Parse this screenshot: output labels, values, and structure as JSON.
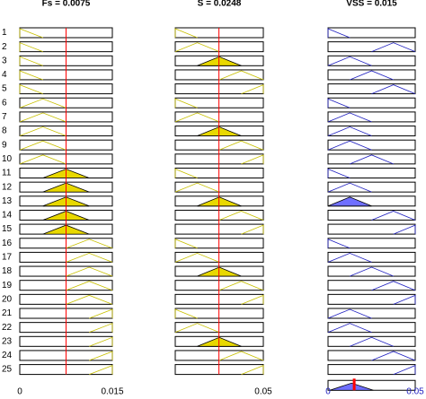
{
  "rule_labels": [
    "1",
    "2",
    "3",
    "4",
    "5",
    "6",
    "7",
    "8",
    "9",
    "10",
    "11",
    "12",
    "13",
    "14",
    "15",
    "16",
    "17",
    "18",
    "19",
    "20",
    "21",
    "22",
    "23",
    "24",
    "25"
  ],
  "columns": [
    {
      "title": "Fs = 0.0075",
      "value": 0.0075,
      "range": [
        0,
        0.015
      ],
      "axis_labels": [
        "0",
        "0.015"
      ],
      "color": "#e8d800",
      "edge": "#c8c000",
      "mf": [
        0,
        0,
        0,
        0,
        0,
        1,
        1,
        1,
        1,
        1,
        2,
        2,
        2,
        2,
        2,
        3,
        3,
        3,
        3,
        3,
        4,
        4,
        4,
        4,
        4
      ],
      "filled": [
        10,
        11,
        12,
        13,
        14
      ]
    },
    {
      "title": "S = 0.0248",
      "value": 0.0248,
      "range": [
        0,
        0.05
      ],
      "axis_labels": [
        "0.05"
      ],
      "color": "#e8d800",
      "edge": "#c8c000",
      "mf": [
        0,
        1,
        2,
        3,
        4,
        0,
        1,
        2,
        3,
        4,
        0,
        1,
        2,
        3,
        4,
        0,
        1,
        2,
        3,
        4,
        0,
        1,
        2,
        3,
        4
      ],
      "filled": [
        2,
        7,
        12,
        17,
        22
      ]
    },
    {
      "title": "VSS = 0.015",
      "value": 0.015,
      "range": [
        0,
        0.05
      ],
      "axis_labels": [
        "0",
        "0.05"
      ],
      "color": "#6f6fff",
      "edge": "#2020c0",
      "mf": [
        0,
        3,
        1,
        2,
        3,
        0,
        1,
        1,
        1,
        2,
        0,
        1,
        1,
        3,
        4,
        0,
        1,
        2,
        3,
        4,
        1,
        1,
        2,
        3,
        4
      ],
      "filled": [
        12
      ]
    }
  ]
}
